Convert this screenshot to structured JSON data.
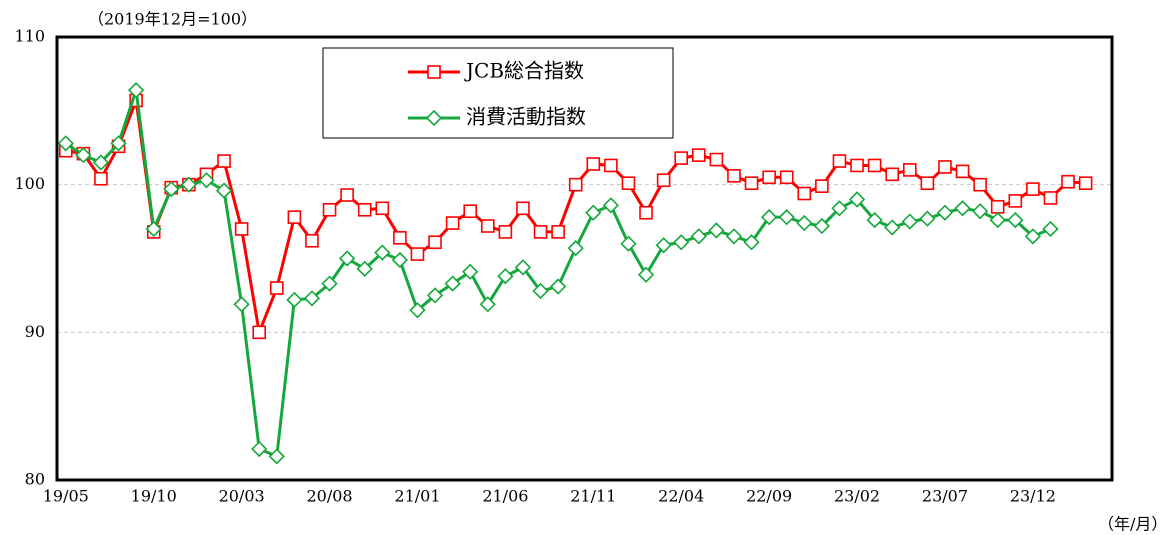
{
  "chart_data": {
    "type": "line",
    "subtitle": "（2019年12月=100）",
    "x_label": "（年/月）",
    "categories": [
      "19/05",
      null,
      null,
      null,
      null,
      "19/10",
      null,
      null,
      null,
      null,
      "20/03",
      null,
      null,
      null,
      null,
      "20/08",
      null,
      null,
      null,
      null,
      "21/01",
      null,
      null,
      null,
      null,
      "21/06",
      null,
      null,
      null,
      null,
      "21/11",
      null,
      null,
      null,
      null,
      "22/04",
      null,
      null,
      null,
      null,
      "22/09",
      null,
      null,
      null,
      null,
      "23/02",
      null,
      null,
      null,
      null,
      "23/07",
      null,
      null,
      null,
      null,
      "23/12",
      null,
      null,
      null
    ],
    "series": [
      {
        "name": "JCB総合指数",
        "color": "#ff0000",
        "marker": "square",
        "values": [
          102.3,
          102.1,
          100.4,
          102.6,
          105.7,
          96.8,
          99.8,
          100.0,
          100.7,
          101.6,
          97.0,
          90.0,
          93.0,
          97.8,
          96.2,
          98.3,
          99.3,
          98.3,
          98.4,
          96.4,
          95.3,
          96.1,
          97.4,
          98.2,
          97.2,
          96.8,
          98.4,
          96.8,
          96.8,
          100.0,
          101.4,
          101.3,
          100.1,
          98.1,
          100.3,
          101.8,
          102.0,
          101.7,
          100.6,
          100.1,
          100.5,
          100.5,
          99.4,
          99.9,
          101.6,
          101.3,
          101.3,
          100.7,
          101.0,
          100.1,
          101.2,
          100.9,
          100.0,
          98.5,
          98.9,
          99.7,
          99.1,
          100.2,
          100.1
        ]
      },
      {
        "name": "消費活動指数",
        "color": "#14a83c",
        "marker": "diamond",
        "values": [
          102.8,
          102.0,
          101.5,
          102.8,
          106.4,
          97.0,
          99.7,
          100.0,
          100.3,
          99.6,
          91.9,
          82.1,
          81.6,
          92.2,
          92.3,
          93.3,
          95.0,
          94.3,
          95.4,
          94.9,
          91.5,
          92.5,
          93.3,
          94.1,
          91.9,
          93.8,
          94.4,
          92.8,
          93.1,
          95.7,
          98.1,
          98.6,
          96.0,
          93.9,
          95.9,
          96.1,
          96.5,
          96.9,
          96.5,
          96.1,
          97.8,
          97.8,
          97.4,
          97.2,
          98.4,
          99.0,
          97.6,
          97.1,
          97.5,
          97.7,
          98.1,
          98.4,
          98.2,
          97.6,
          97.6,
          96.5,
          97.0,
          null,
          null
        ]
      }
    ],
    "ylim": [
      80,
      110
    ],
    "yticks": [
      80,
      90,
      100,
      110
    ],
    "grid": true,
    "legend": "top"
  }
}
